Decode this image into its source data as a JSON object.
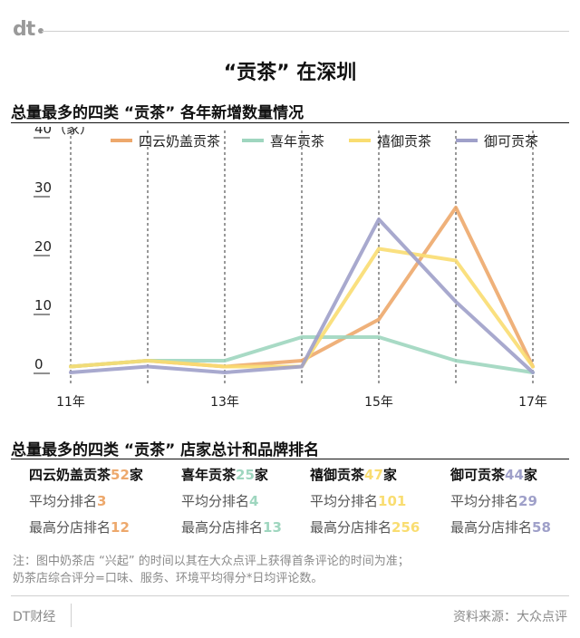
{
  "logo": "dt",
  "title": "“贡茶” 在深圳",
  "section1_title": "总量最多的四类 “贡茶” 各年新增数量情况",
  "section2_title": "总量最多的四类 “贡茶” 店家总计和品牌排名",
  "chart_data": {
    "type": "line",
    "x": [
      "11年",
      "12年",
      "13年",
      "14年",
      "15年",
      "16年",
      "17年"
    ],
    "x_tick_labels": [
      "11年",
      "",
      "13年",
      "",
      "15年",
      "",
      "17年"
    ],
    "y_ticks": [
      "0",
      "10",
      "20",
      "30",
      "40"
    ],
    "y_unit": "（家）",
    "ylim": [
      0,
      40
    ],
    "grid": "vertical dashed",
    "legend_position": "top",
    "series": [
      {
        "name": "四云奶盖贡茶",
        "color": "#eda86c",
        "values": [
          1,
          2,
          1,
          2,
          9,
          28,
          1
        ]
      },
      {
        "name": "喜年贡茶",
        "color": "#9fd6bf",
        "values": [
          1,
          2,
          2,
          6,
          6,
          2,
          0
        ]
      },
      {
        "name": "禧御贡茶",
        "color": "#f9dd71",
        "values": [
          1,
          2,
          1,
          1,
          21,
          19,
          1
        ]
      },
      {
        "name": "御可贡茶",
        "color": "#9fa0c9",
        "values": [
          0,
          1,
          0,
          1,
          26,
          12,
          0
        ]
      }
    ]
  },
  "stats": [
    {
      "name": "四云奶盖贡茶",
      "count": "52",
      "unit": "家",
      "avg_label": "平均分排名",
      "avg": "3",
      "top_label": "最高分店排名",
      "top": "12",
      "color": "#eda86c"
    },
    {
      "name": "喜年贡茶",
      "count": "25",
      "unit": "家",
      "avg_label": "平均分排名",
      "avg": "4",
      "top_label": "最高分店排名",
      "top": "13",
      "color": "#9fd6bf"
    },
    {
      "name": "禧御贡茶",
      "count": "47",
      "unit": "家",
      "avg_label": "平均分排名",
      "avg": "101",
      "top_label": "最高分店排名",
      "top": "256",
      "color": "#f9dd71"
    },
    {
      "name": "御可贡茶",
      "count": "44",
      "unit": "家",
      "avg_label": "平均分排名",
      "avg": "29",
      "top_label": "最高分店排名",
      "top": "58",
      "color": "#9fa0c9"
    }
  ],
  "note_line1": "注：图中奶茶店 “兴起” 的时间以其在大众点评上获得首条评论的时间为准；",
  "note_line2": "奶茶店综合评分=口味、服务、环境平均得分*日均评论数。",
  "brand": "DT财经",
  "source": "资料来源：大众点评"
}
